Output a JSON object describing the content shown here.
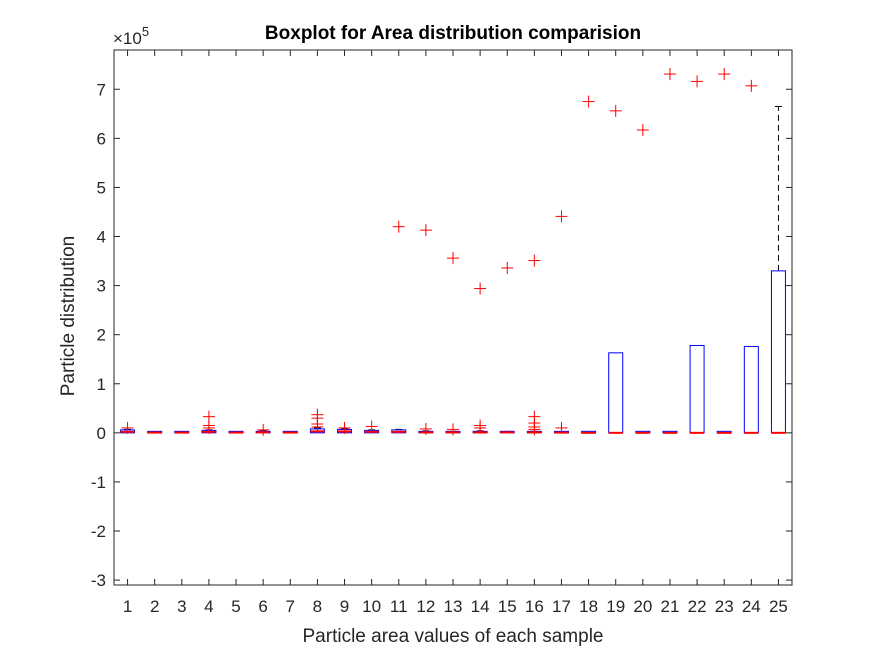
{
  "chart_data": {
    "type": "boxplot",
    "title": "Boxplot for Area distribution comparision",
    "xlabel": "Particle area values of each sample",
    "ylabel": "Particle distribution",
    "y_exponent_base": "×10",
    "y_exponent_power": "5",
    "scale_factor": 100000,
    "ylim": [
      -3.1,
      7.8
    ],
    "xlim": [
      0.5,
      25.5
    ],
    "yticks": [
      -3,
      -2,
      -1,
      0,
      1,
      2,
      3,
      4,
      5,
      6,
      7
    ],
    "categories": [
      "1",
      "2",
      "3",
      "4",
      "5",
      "6",
      "7",
      "8",
      "9",
      "10",
      "11",
      "12",
      "13",
      "14",
      "15",
      "16",
      "17",
      "18",
      "19",
      "20",
      "21",
      "22",
      "23",
      "24",
      "25"
    ],
    "boxes": [
      {
        "q1": 0,
        "median": 0.02,
        "q3": 0.06,
        "whisker_low": 0,
        "whisker_high": 0.07
      },
      {
        "q1": 0,
        "median": 0.005,
        "q3": 0.01,
        "whisker_low": 0,
        "whisker_high": 0.01
      },
      {
        "q1": 0,
        "median": 0.005,
        "q3": 0.01,
        "whisker_low": 0,
        "whisker_high": 0.01
      },
      {
        "q1": 0,
        "median": 0.02,
        "q3": 0.05,
        "whisker_low": 0,
        "whisker_high": 0.06
      },
      {
        "q1": 0,
        "median": 0.005,
        "q3": 0.01,
        "whisker_low": 0,
        "whisker_high": 0.01
      },
      {
        "q1": 0,
        "median": 0.01,
        "q3": 0.03,
        "whisker_low": 0,
        "whisker_high": 0.04
      },
      {
        "q1": 0,
        "median": 0.005,
        "q3": 0.01,
        "whisker_low": 0,
        "whisker_high": 0.01
      },
      {
        "q1": 0,
        "median": 0.03,
        "q3": 0.08,
        "whisker_low": 0,
        "whisker_high": 0.1
      },
      {
        "q1": 0,
        "median": 0.03,
        "q3": 0.07,
        "whisker_low": 0,
        "whisker_high": 0.09
      },
      {
        "q1": 0,
        "median": 0.02,
        "q3": 0.05,
        "whisker_low": 0,
        "whisker_high": 0.06
      },
      {
        "q1": 0,
        "median": 0.02,
        "q3": 0.06,
        "whisker_low": 0,
        "whisker_high": 0.07
      },
      {
        "q1": 0,
        "median": 0.01,
        "q3": 0.03,
        "whisker_low": 0,
        "whisker_high": 0.04
      },
      {
        "q1": 0,
        "median": 0.01,
        "q3": 0.02,
        "whisker_low": 0,
        "whisker_high": 0.03
      },
      {
        "q1": 0,
        "median": 0.01,
        "q3": 0.03,
        "whisker_low": 0,
        "whisker_high": 0.04
      },
      {
        "q1": 0,
        "median": 0.01,
        "q3": 0.02,
        "whisker_low": 0,
        "whisker_high": 0.03
      },
      {
        "q1": 0,
        "median": 0.01,
        "q3": 0.02,
        "whisker_low": 0,
        "whisker_high": 0.03
      },
      {
        "q1": 0,
        "median": 0.005,
        "q3": 0.01,
        "whisker_low": 0,
        "whisker_high": 0.01
      },
      {
        "q1": 0,
        "median": 0,
        "q3": 0,
        "whisker_low": 0,
        "whisker_high": 0
      },
      {
        "q1": 0,
        "median": 0,
        "q3": 1.63,
        "whisker_low": 0,
        "whisker_high": 1.63
      },
      {
        "q1": 0,
        "median": 0,
        "q3": 0,
        "whisker_low": 0,
        "whisker_high": 0
      },
      {
        "q1": 0,
        "median": 0,
        "q3": 0,
        "whisker_low": 0,
        "whisker_high": 0
      },
      {
        "q1": 0,
        "median": 0,
        "q3": 1.78,
        "whisker_low": 0,
        "whisker_high": 1.78
      },
      {
        "q1": 0,
        "median": 0,
        "q3": 0,
        "whisker_low": 0,
        "whisker_high": 0
      },
      {
        "q1": 0,
        "median": 0,
        "q3": 1.76,
        "whisker_low": 0,
        "whisker_high": 1.76
      },
      {
        "q1": 0,
        "median": 0,
        "q3": 3.3,
        "whisker_low": 0,
        "whisker_high": 6.65
      }
    ],
    "outliers": [
      {
        "x": 1,
        "y": 0.1
      },
      {
        "x": 4,
        "y": 0.33
      },
      {
        "x": 4,
        "y": 0.15
      },
      {
        "x": 4,
        "y": 0.1
      },
      {
        "x": 6,
        "y": 0.06
      },
      {
        "x": 8,
        "y": 0.37
      },
      {
        "x": 8,
        "y": 0.3
      },
      {
        "x": 8,
        "y": 0.18
      },
      {
        "x": 8,
        "y": 0.12
      },
      {
        "x": 9,
        "y": 0.1
      },
      {
        "x": 10,
        "y": 0.13
      },
      {
        "x": 11,
        "y": 4.2
      },
      {
        "x": 12,
        "y": 4.13
      },
      {
        "x": 12,
        "y": 0.08
      },
      {
        "x": 13,
        "y": 3.56
      },
      {
        "x": 13,
        "y": 0.07
      },
      {
        "x": 14,
        "y": 2.94
      },
      {
        "x": 14,
        "y": 0.15
      },
      {
        "x": 14,
        "y": 0.1
      },
      {
        "x": 15,
        "y": 3.36
      },
      {
        "x": 16,
        "y": 3.51
      },
      {
        "x": 16,
        "y": 0.33
      },
      {
        "x": 16,
        "y": 0.2
      },
      {
        "x": 16,
        "y": 0.12
      },
      {
        "x": 16,
        "y": 0.07
      },
      {
        "x": 17,
        "y": 4.41
      },
      {
        "x": 17,
        "y": 0.1
      },
      {
        "x": 18,
        "y": 6.75
      },
      {
        "x": 19,
        "y": 6.56
      },
      {
        "x": 20,
        "y": 6.17
      },
      {
        "x": 21,
        "y": 7.31
      },
      {
        "x": 22,
        "y": 7.16
      },
      {
        "x": 23,
        "y": 7.31
      },
      {
        "x": 24,
        "y": 7.07
      }
    ],
    "colors": {
      "box": "#0000ff",
      "median": "#ff0000",
      "outlier": "#ff0000",
      "whisker": "#000000",
      "axis": "#262626"
    },
    "grid": false
  }
}
